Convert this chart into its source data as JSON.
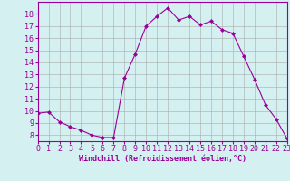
{
  "x": [
    0,
    1,
    2,
    3,
    4,
    5,
    6,
    7,
    8,
    9,
    10,
    11,
    12,
    13,
    14,
    15,
    16,
    17,
    18,
    19,
    20,
    21,
    22,
    23
  ],
  "y": [
    9.8,
    9.9,
    9.1,
    8.7,
    8.4,
    8.0,
    7.8,
    7.8,
    12.7,
    14.7,
    17.0,
    17.8,
    18.5,
    17.5,
    17.8,
    17.1,
    17.4,
    16.7,
    16.4,
    14.5,
    12.6,
    10.5,
    9.3,
    7.7
  ],
  "xlim": [
    0,
    23
  ],
  "ylim": [
    7.5,
    19.0
  ],
  "yticks": [
    8,
    9,
    10,
    11,
    12,
    13,
    14,
    15,
    16,
    17,
    18
  ],
  "xticks": [
    0,
    1,
    2,
    3,
    4,
    5,
    6,
    7,
    8,
    9,
    10,
    11,
    12,
    13,
    14,
    15,
    16,
    17,
    18,
    19,
    20,
    21,
    22,
    23
  ],
  "xlabel": "Windchill (Refroidissement éolien,°C)",
  "line_color": "#990099",
  "marker": "D",
  "marker_size": 2,
  "bg_color": "#d4f0f0",
  "grid_color": "#aaaaaa",
  "label_fontsize": 6,
  "tick_fontsize": 6
}
